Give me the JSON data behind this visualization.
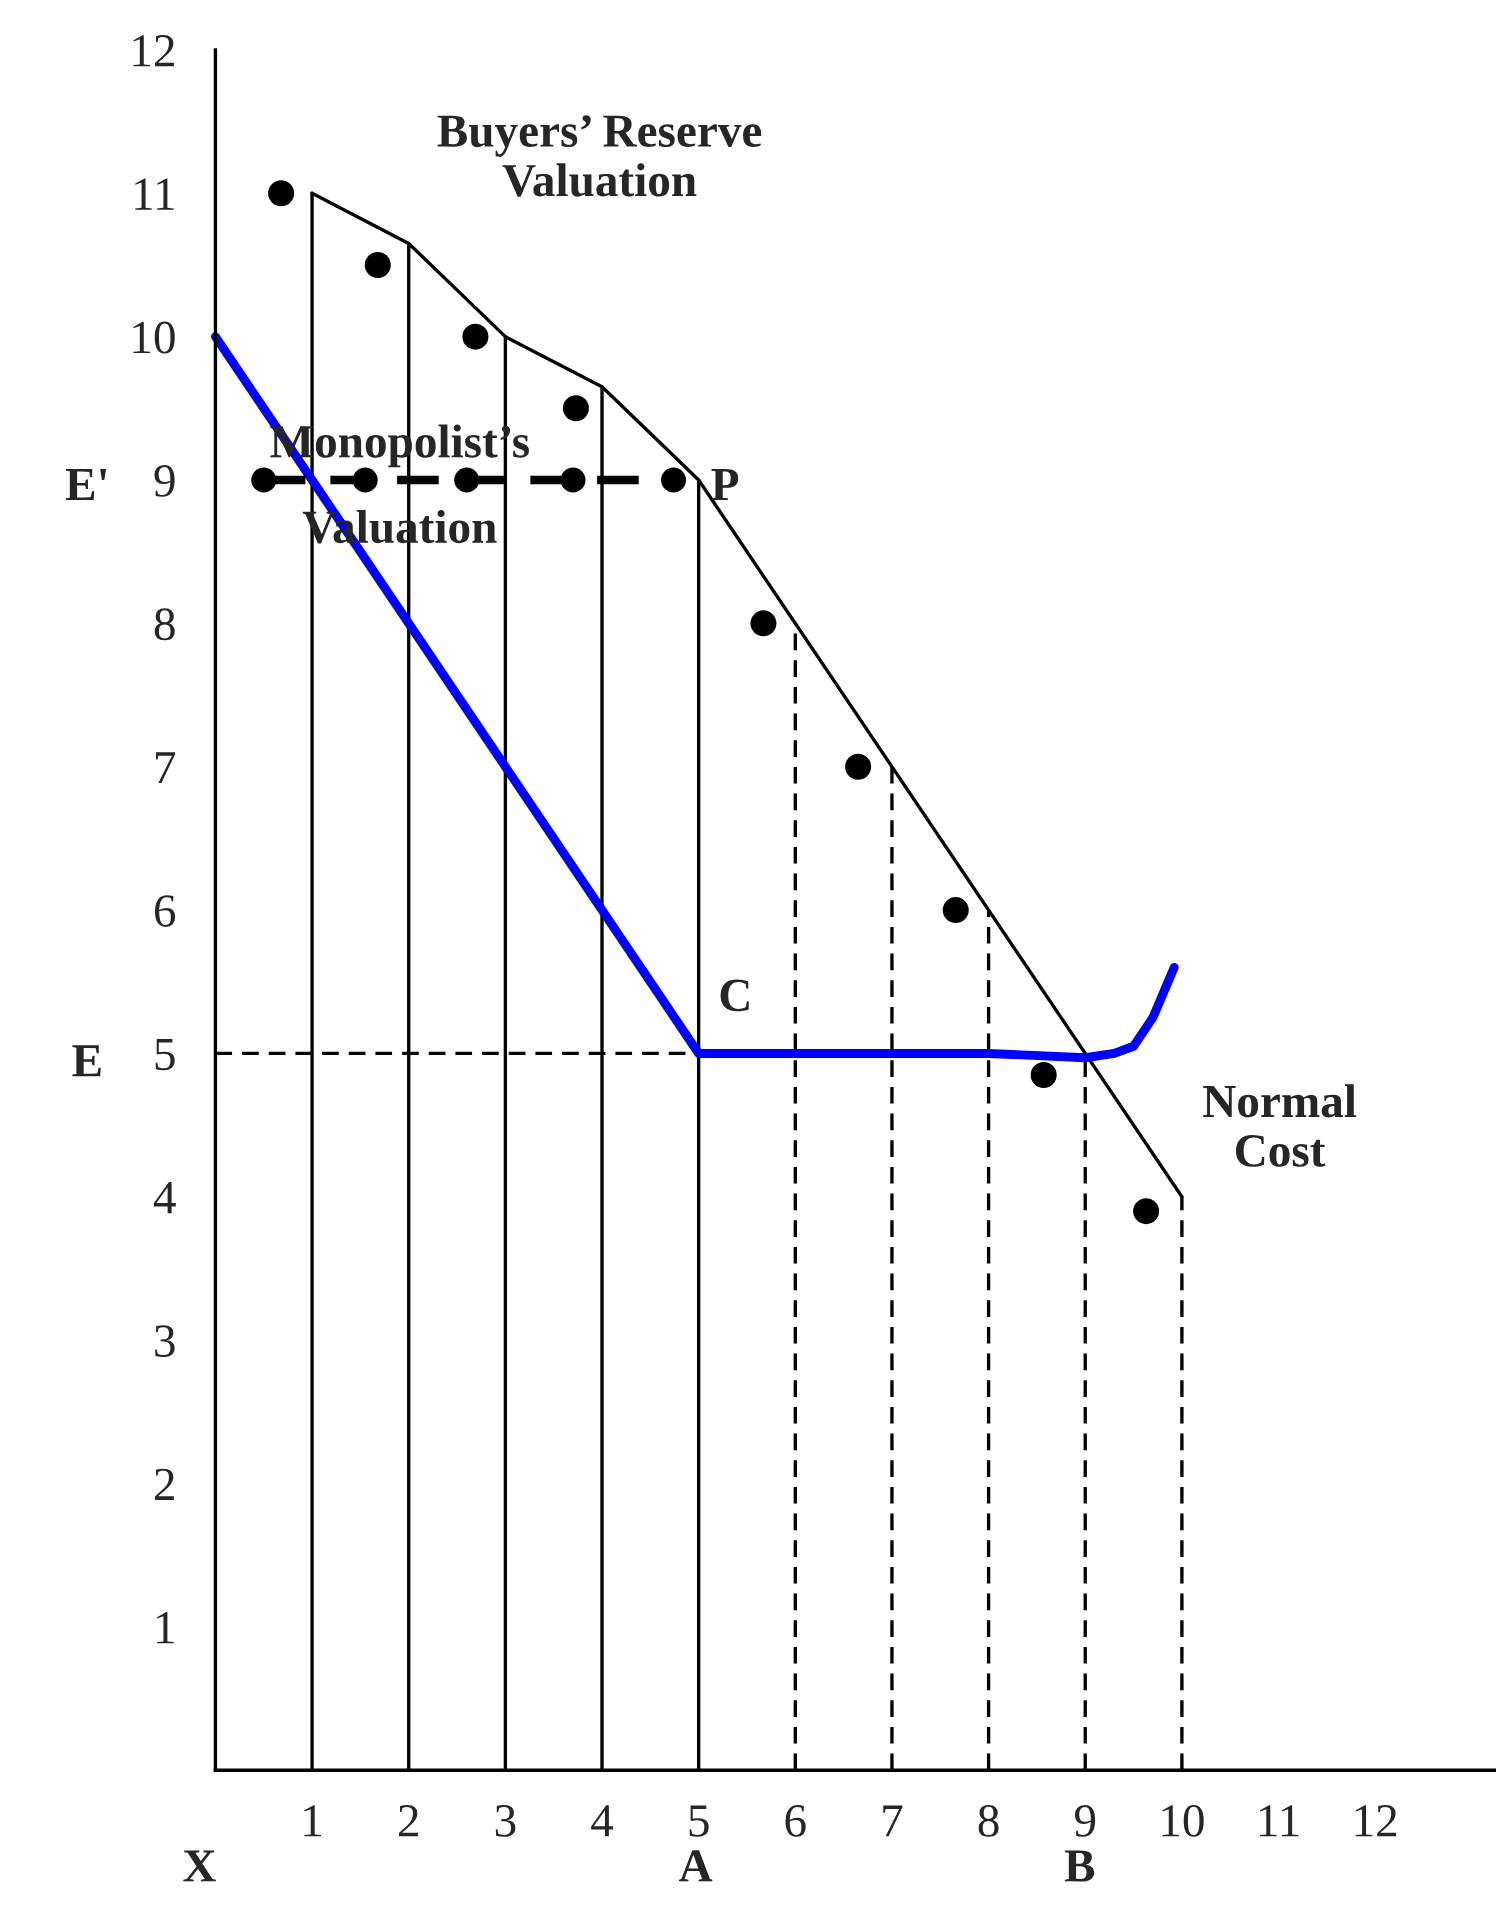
{
  "chart_data": {
    "type": "line",
    "xlim": [
      0,
      13.25
    ],
    "ylim": [
      0,
      12
    ],
    "xticks": [
      1,
      2,
      3,
      4,
      5,
      6,
      7,
      8,
      9,
      10,
      11,
      12
    ],
    "yticks": [
      1,
      2,
      3,
      4,
      5,
      6,
      7,
      8,
      9,
      10,
      11,
      12
    ],
    "series": [
      {
        "color": "#000000",
        "x": [
          1,
          2,
          3,
          4,
          5,
          10
        ],
        "values": [
          11,
          10.65,
          10,
          9.65,
          9,
          4
        ],
        "line_style": "solid"
      },
      {
        "type": "line",
        "color": "#000000",
        "x": [
          1,
          1
        ],
        "values": [
          0,
          11
        ],
        "line_style": "solid"
      },
      {
        "type": "line",
        "color": "#000000",
        "x": [
          2,
          2
        ],
        "values": [
          0,
          10.65
        ],
        "line_style": "solid"
      },
      {
        "type": "line",
        "color": "#000000",
        "x": [
          3,
          3
        ],
        "values": [
          0,
          10
        ],
        "line_style": "solid"
      },
      {
        "type": "line",
        "color": "#000000",
        "x": [
          4,
          4
        ],
        "values": [
          0,
          9.65
        ],
        "line_style": "solid"
      },
      {
        "type": "line",
        "color": "#000000",
        "x": [
          5,
          5
        ],
        "values": [
          0,
          9
        ],
        "line_style": "solid"
      },
      {
        "type": "line",
        "color": "#000000",
        "x": [
          6,
          6
        ],
        "values": [
          0,
          8
        ],
        "line_style": "dashed"
      },
      {
        "type": "line",
        "color": "#000000",
        "x": [
          7,
          7
        ],
        "values": [
          0,
          7
        ],
        "line_style": "dashed"
      },
      {
        "type": "line",
        "color": "#000000",
        "x": [
          8,
          8
        ],
        "values": [
          0,
          6
        ],
        "line_style": "dashed"
      },
      {
        "type": "line",
        "color": "#000000",
        "x": [
          9,
          9
        ],
        "values": [
          0,
          5
        ],
        "line_style": "dashed"
      },
      {
        "type": "line",
        "color": "#000000",
        "x": [
          10,
          10
        ],
        "values": [
          0,
          4
        ],
        "line_style": "dashed"
      },
      {
        "type": "line",
        "color": "#000000",
        "x": [
          0,
          5
        ],
        "values": [
          5,
          5
        ],
        "line_style": "dashed"
      },
      {
        "type": "line",
        "color": "#0000ff",
        "x": [
          0,
          5,
          8,
          9,
          9.3,
          9.5,
          9.7,
          9.92
        ],
        "values": [
          10,
          5,
          5,
          4.97,
          5,
          5.05,
          5.25,
          5.6
        ],
        "line_style": "solid"
      },
      {
        "type": "line",
        "color": "#000000",
        "x": [
          0.5,
          1.55,
          2.6,
          3.7,
          4.74
        ],
        "values": [
          9,
          9,
          9,
          9,
          9
        ],
        "line_style": "dashed",
        "marker": "circle"
      },
      {
        "type": "scatter",
        "color": "#000000",
        "x": [
          0.68,
          1.68,
          2.69,
          3.73,
          5.67,
          6.65,
          7.66,
          8.57,
          9.63
        ],
        "values": [
          11,
          10.5,
          10,
          9.5,
          8,
          7,
          6,
          4.85,
          3.9
        ],
        "marker": "circle"
      }
    ],
    "annotations": [
      "Buyers’ Reserve\nValuation",
      "Monopolist’s\nValuation",
      "P",
      "C",
      "Normal\nCost",
      "E'",
      "E",
      "X",
      "A",
      "B"
    ],
    "grid": false
  }
}
